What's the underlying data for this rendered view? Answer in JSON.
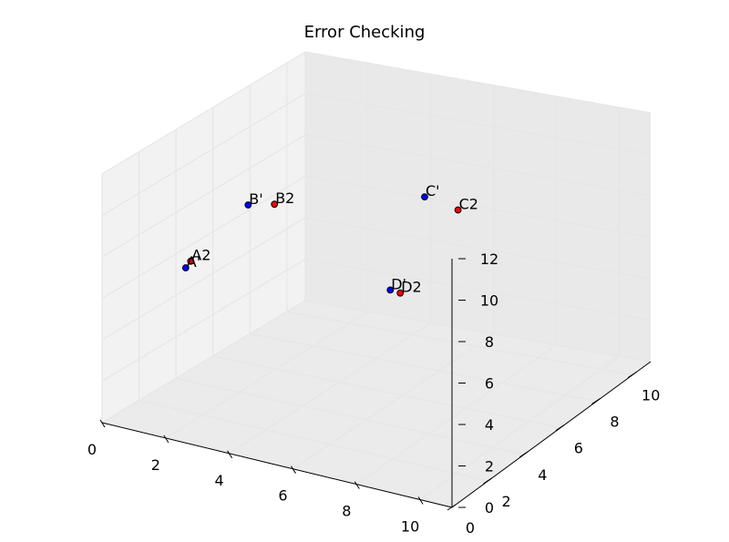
{
  "chart_data": {
    "type": "scatter",
    "title": "Error Checking",
    "xlabel": "",
    "ylabel": "",
    "zlabel": "",
    "xlim": [
      0,
      11
    ],
    "ylim": [
      0,
      11
    ],
    "zlim": [
      0,
      12
    ],
    "x_ticks": [
      0,
      2,
      4,
      6,
      8,
      10
    ],
    "y_ticks": [
      0,
      2,
      4,
      6,
      8,
      10
    ],
    "z_ticks": [
      0,
      2,
      4,
      6,
      8,
      10,
      12
    ],
    "grid": true,
    "series": [
      {
        "color": "#0000ff",
        "points": [
          {
            "label": "A'",
            "x": 0.6,
            "y": 3.5,
            "z": 5.8
          },
          {
            "label": "B'",
            "x": 1.0,
            "y": 6.2,
            "z": 7.5
          },
          {
            "label": "C'",
            "x": 5.2,
            "y": 8.6,
            "z": 7.8
          },
          {
            "label": "D'",
            "x": 5.5,
            "y": 6.2,
            "z": 4.8
          }
        ]
      },
      {
        "color": "#ff0000",
        "points": [
          {
            "label": "A2",
            "x": 0.7,
            "y": 3.6,
            "z": 6.1
          },
          {
            "label": "B2",
            "x": 1.6,
            "y": 6.6,
            "z": 7.5
          },
          {
            "label": "C2",
            "x": 6.2,
            "y": 8.7,
            "z": 7.4
          },
          {
            "label": "D2",
            "x": 5.7,
            "y": 6.4,
            "z": 4.6
          }
        ]
      }
    ]
  }
}
